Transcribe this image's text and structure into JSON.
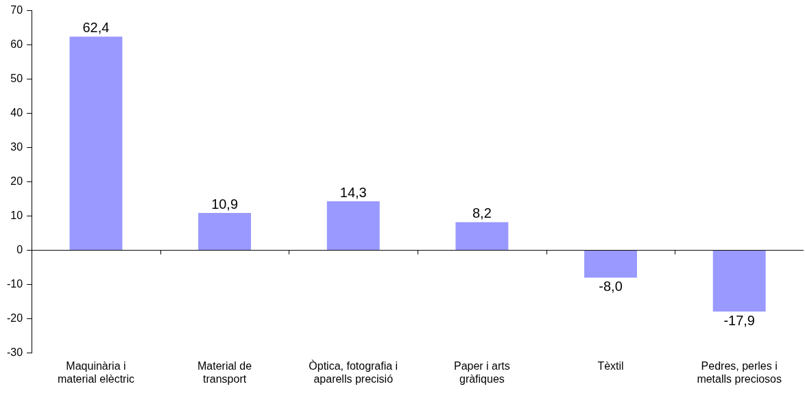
{
  "chart_data": {
    "type": "bar",
    "categories": [
      "Maquinària i material elèctric",
      "Material de transport",
      "Òptica, fotografia i aparells precisió",
      "Paper i arts gràfiques",
      "Tèxtil",
      "Pedres, perles i metalls preciosos"
    ],
    "values": [
      62.4,
      10.9,
      14.3,
      8.2,
      -8.0,
      -17.9
    ],
    "value_labels": [
      "62,4",
      "10,9",
      "14,3",
      "8,2",
      "-8,0",
      "-17,9"
    ],
    "color": "#9999ff",
    "ylim": [
      -30,
      70
    ],
    "yticks": [
      -30,
      -20,
      -10,
      0,
      10,
      20,
      30,
      40,
      50,
      60,
      70
    ],
    "legend": false
  }
}
